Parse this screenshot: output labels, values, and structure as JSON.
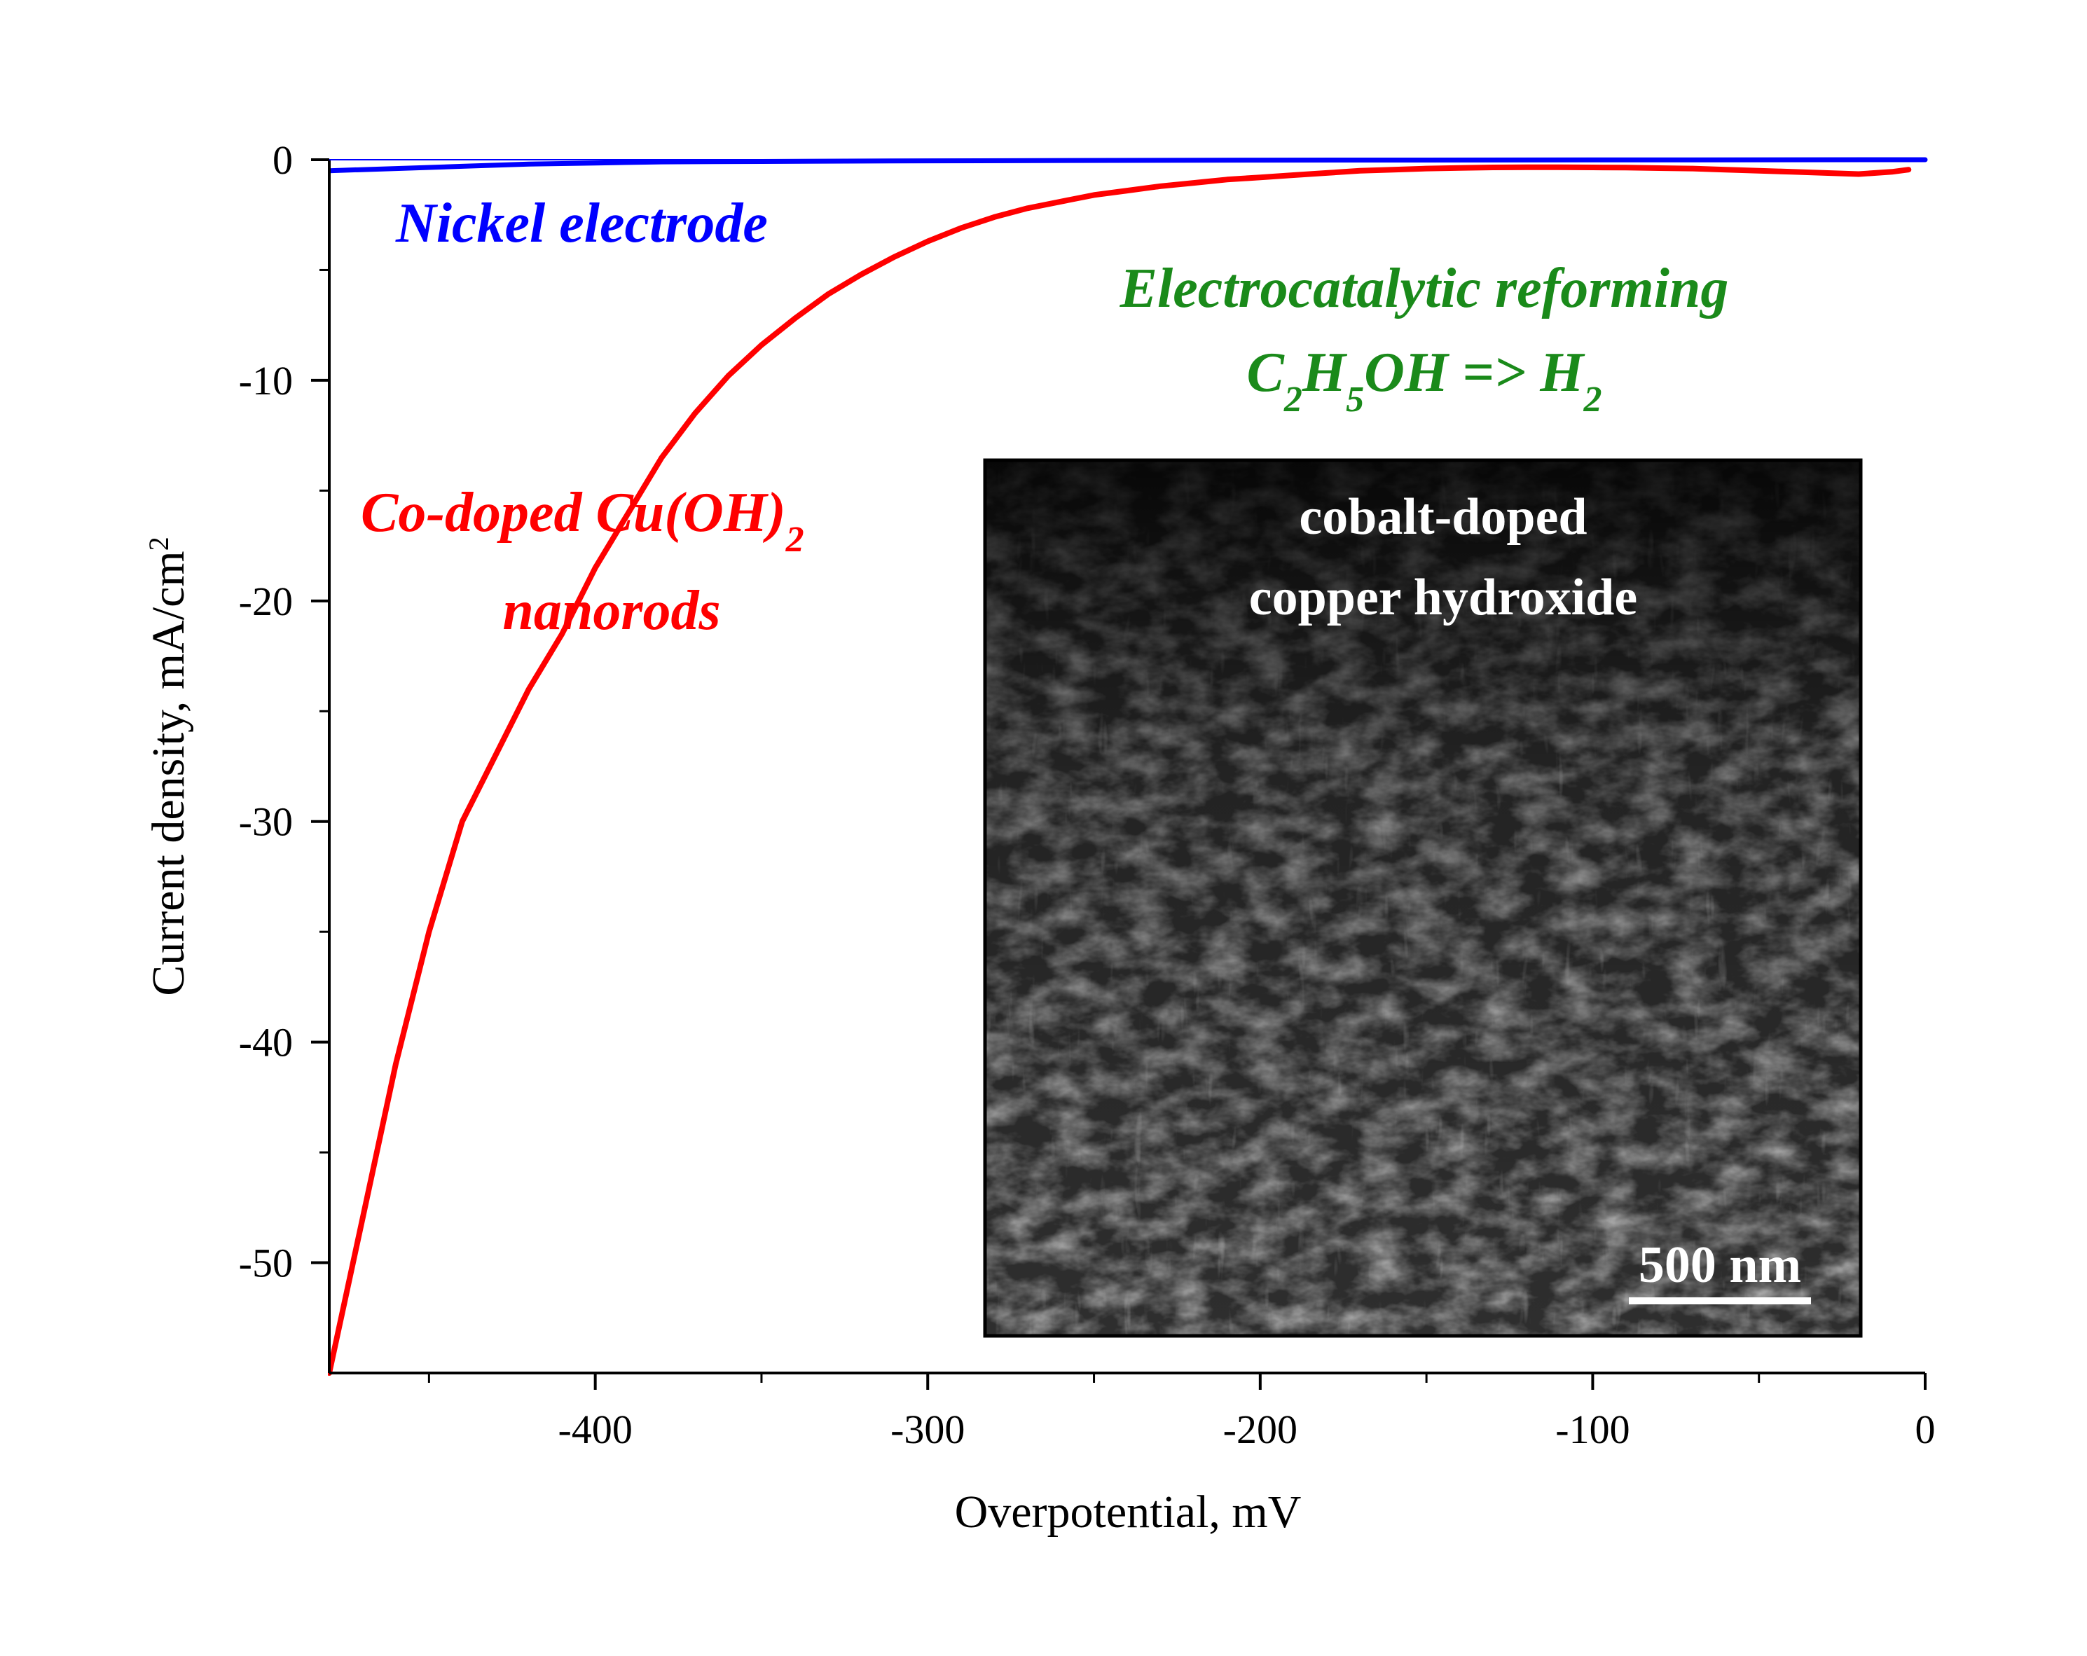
{
  "chart_data": {
    "type": "line",
    "xlabel": "Overpotential, mV",
    "ylabel": "Current density, mA/cm",
    "ylabel_sup": "2",
    "xlim": [
      -480,
      0
    ],
    "ylim": [
      -55,
      0
    ],
    "x_ticks": [
      -400,
      -300,
      -200,
      -100,
      0
    ],
    "x_tick_labels": [
      "-400",
      "-300",
      "-200",
      "-100",
      "0"
    ],
    "y_ticks": [
      0,
      -10,
      -20,
      -30,
      -40,
      -50
    ],
    "y_tick_labels": [
      "0",
      "-10",
      "-20",
      "-30",
      "-40",
      "-50"
    ],
    "grid": false,
    "colors": {
      "nickel": "#0000ff",
      "codoped": "#ff0000",
      "reforming": "#1a8a1a",
      "axis": "#000000"
    },
    "series": [
      {
        "label": "Nickel electrode",
        "color": "#0000ff",
        "x": [
          -480,
          -460,
          -440,
          -420,
          -400,
          -380,
          -350,
          -300,
          -200,
          -100,
          0
        ],
        "y": [
          -0.5,
          -0.4,
          -0.3,
          -0.2,
          -0.15,
          -0.1,
          -0.08,
          -0.05,
          -0.02,
          -0.01,
          0
        ]
      },
      {
        "label": "Co-doped Cu(OH)2 nanorods",
        "color": "#ff0000",
        "x": [
          -480,
          -470,
          -460,
          -450,
          -440,
          -430,
          -420,
          -410,
          -400,
          -390,
          -380,
          -370,
          -360,
          -350,
          -340,
          -330,
          -320,
          -310,
          -300,
          -290,
          -280,
          -270,
          -260,
          -250,
          -240,
          -230,
          -220,
          -210,
          -200,
          -190,
          -180,
          -170,
          -160,
          -150,
          -140,
          -130,
          -120,
          -110,
          -100,
          -90,
          -80,
          -70,
          -60,
          -50,
          -40,
          -30,
          -20,
          -10,
          -5
        ],
        "y": [
          -55,
          -48,
          -41,
          -35,
          -30,
          -27,
          -24,
          -21.5,
          -18.5,
          -16,
          -13.5,
          -11.5,
          -9.8,
          -8.4,
          -7.2,
          -6.1,
          -5.2,
          -4.4,
          -3.7,
          -3.1,
          -2.6,
          -2.2,
          -1.9,
          -1.6,
          -1.4,
          -1.2,
          -1.05,
          -0.9,
          -0.8,
          -0.7,
          -0.6,
          -0.5,
          -0.45,
          -0.4,
          -0.37,
          -0.35,
          -0.34,
          -0.34,
          -0.35,
          -0.36,
          -0.38,
          -0.4,
          -0.45,
          -0.5,
          -0.55,
          -0.6,
          -0.65,
          -0.55,
          -0.45
        ]
      }
    ],
    "annotations": {
      "nickel": "Nickel electrode",
      "codoped_line1_main": "Co-doped Cu(OH)",
      "codoped_line1_sub": "2",
      "codoped_line2": "nanorods",
      "reforming_line1": "Electrocatalytic reforming",
      "reforming_c": "C",
      "reforming_c_sub": "2",
      "reforming_h": "H",
      "reforming_h_sub": "5",
      "reforming_mid": "OH => H",
      "reforming_end_sub": "2"
    },
    "inset": {
      "line1": "cobalt-doped",
      "line2": "copper hydroxide",
      "scale_bar": "500 nm"
    }
  }
}
